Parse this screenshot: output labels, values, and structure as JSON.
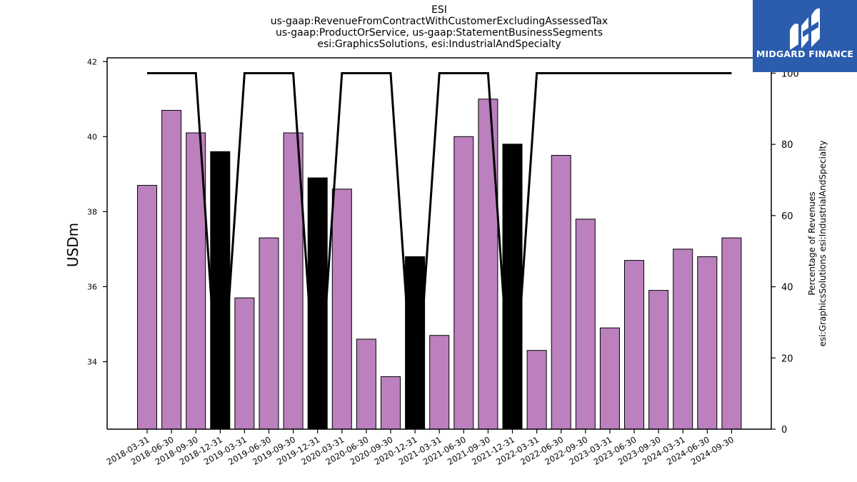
{
  "chart_data": {
    "type": "bar",
    "title_lines": [
      "ESI",
      "us-gaap:RevenueFromContractWithCustomerExcludingAssessedTax",
      "us-gaap:ProductOrService, us-gaap:StatementBusinessSegments",
      "esi:GraphicsSolutions, esi:IndustrialAndSpecialty"
    ],
    "ylabel": "USDm",
    "y2label_lines": [
      "Percentage of Revenues",
      "esi:GraphicsSolutions esi:IndustrialAndSpecialty"
    ],
    "categories": [
      "2018-03-31",
      "2018-06-30",
      "2018-09-30",
      "2018-12-31",
      "2019-03-31",
      "2019-06-30",
      "2019-09-30",
      "2019-12-31",
      "2020-03-31",
      "2020-06-30",
      "2020-09-30",
      "2020-12-31",
      "2021-03-31",
      "2021-06-30",
      "2021-09-30",
      "2021-12-31",
      "2022-03-31",
      "2022-06-30",
      "2022-09-30",
      "2023-03-31",
      "2023-06-30",
      "2023-09-30",
      "2024-03-31",
      "2024-06-30",
      "2024-09-30"
    ],
    "values": [
      38.7,
      40.7,
      40.1,
      39.6,
      35.7,
      37.3,
      40.1,
      38.9,
      38.6,
      34.6,
      33.6,
      36.8,
      34.7,
      40.0,
      41.0,
      39.8,
      34.3,
      39.5,
      37.8,
      34.9,
      36.7,
      35.9,
      37.0,
      36.8,
      37.3
    ],
    "bar_colors": [
      "#bb80bd",
      "#bb80bd",
      "#bb80bd",
      "#000000",
      "#bb80bd",
      "#bb80bd",
      "#bb80bd",
      "#000000",
      "#bb80bd",
      "#bb80bd",
      "#bb80bd",
      "#000000",
      "#bb80bd",
      "#bb80bd",
      "#bb80bd",
      "#000000",
      "#bb80bd",
      "#bb80bd",
      "#bb80bd",
      "#bb80bd",
      "#bb80bd",
      "#bb80bd",
      "#bb80bd",
      "#bb80bd",
      "#bb80bd"
    ],
    "line_values": [
      100,
      100,
      100,
      0,
      100,
      100,
      100,
      0,
      100,
      100,
      100,
      0,
      100,
      100,
      100,
      0,
      100,
      100,
      100,
      100,
      100,
      100,
      100,
      100,
      100
    ],
    "line_color": "#000000",
    "ylim": [
      32.2,
      42.1
    ],
    "yticks": [
      34,
      36,
      38,
      40,
      42
    ],
    "y2lim": [
      0,
      104.3
    ],
    "y2ticks": [
      0,
      20,
      40,
      60,
      80,
      100
    ],
    "grid": false
  },
  "logo": {
    "text": "MIDGARD FINANCE",
    "bg_color": "#2b5cae"
  }
}
